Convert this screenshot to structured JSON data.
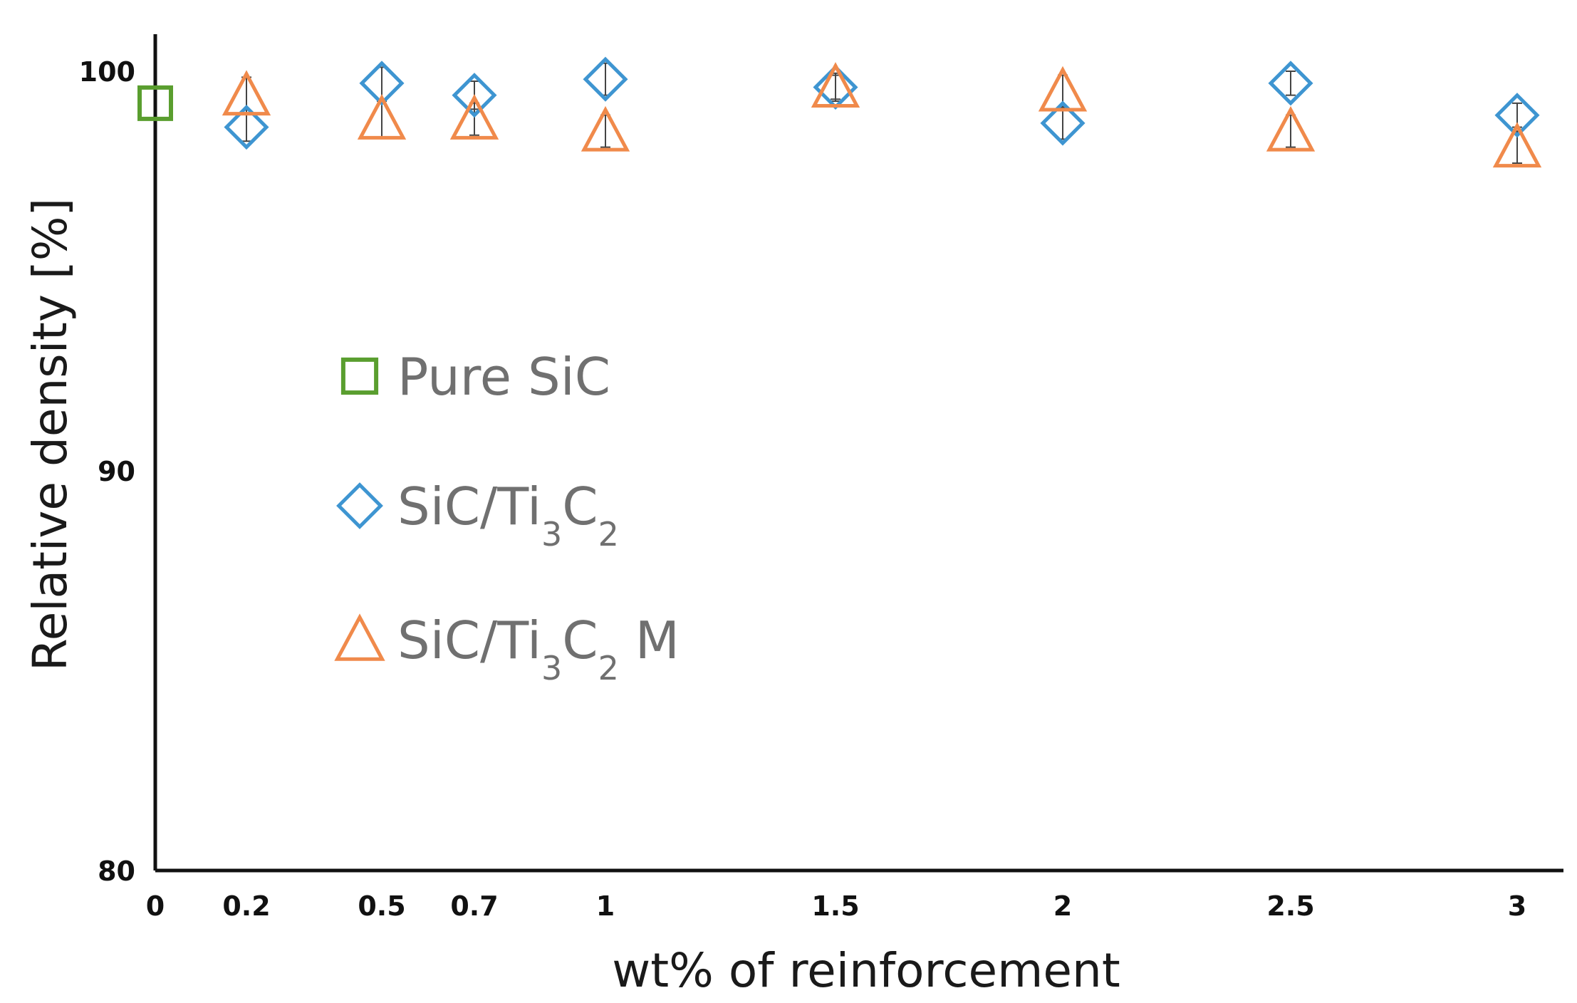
{
  "chart_data": {
    "type": "scatter",
    "xlabel": "wt% of reinforcement",
    "ylabel": "Relative density [%]",
    "ylim": [
      80,
      100
    ],
    "yticks": [
      80,
      90,
      100
    ],
    "x_categories": [
      "0",
      "0.2",
      "0.5",
      "0.7",
      "1",
      "1.5",
      "2",
      "2.5",
      "3"
    ],
    "grid": false,
    "legend_position": "center-left",
    "series": [
      {
        "name": "Pure SiC",
        "name_parts": [
          "Pure SiC"
        ],
        "marker": "square",
        "color": "#5a9e2f",
        "points": [
          {
            "x": "0",
            "y": 99.2,
            "err": 0
          }
        ]
      },
      {
        "name": "SiC/Ti3C2",
        "name_parts": [
          "SiC/Ti",
          "3",
          "C",
          "2"
        ],
        "marker": "diamond",
        "color": "#3e95d1",
        "points": [
          {
            "x": "0.2",
            "y": 98.6,
            "err": 0.35
          },
          {
            "x": "0.5",
            "y": 99.7,
            "err": 0.4
          },
          {
            "x": "0.7",
            "y": 99.4,
            "err": 0.35
          },
          {
            "x": "1",
            "y": 99.8,
            "err": 0.4
          },
          {
            "x": "1.5",
            "y": 99.6,
            "err": 0.35
          },
          {
            "x": "2",
            "y": 98.7,
            "err": 0.4
          },
          {
            "x": "2.5",
            "y": 99.7,
            "err": 0.3
          },
          {
            "x": "3",
            "y": 98.9,
            "err": 0.3
          }
        ]
      },
      {
        "name": "SiC/Ti3C2 M",
        "name_parts": [
          "SiC/Ti",
          "3",
          "C",
          "2",
          " M"
        ],
        "marker": "triangle",
        "color": "#f08a4b",
        "points": [
          {
            "x": "0.2",
            "y": 99.4,
            "err": 0.45
          },
          {
            "x": "0.5",
            "y": 98.8,
            "err": 0.45
          },
          {
            "x": "0.7",
            "y": 98.8,
            "err": 0.4
          },
          {
            "x": "1",
            "y": 98.5,
            "err": 0.4
          },
          {
            "x": "1.5",
            "y": 99.6,
            "err": 0.3
          },
          {
            "x": "2",
            "y": 99.5,
            "err": 0.4
          },
          {
            "x": "2.5",
            "y": 98.5,
            "err": 0.4
          },
          {
            "x": "3",
            "y": 98.1,
            "err": 0.4
          }
        ]
      }
    ]
  }
}
